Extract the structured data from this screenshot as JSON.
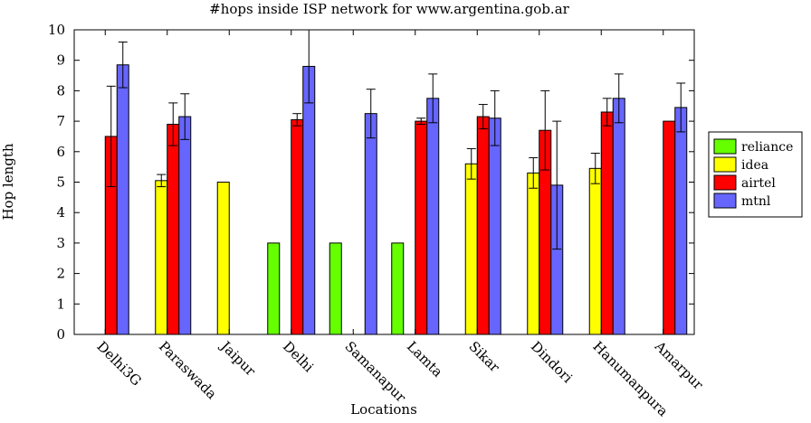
{
  "chart_data": {
    "type": "bar",
    "title": "#hops inside ISP network for www.argentina.gob.ar",
    "xlabel": "Locations",
    "ylabel": "Hop length",
    "ylim": [
      0,
      10
    ],
    "yticks": [
      0,
      1,
      2,
      3,
      4,
      5,
      6,
      7,
      8,
      9,
      10
    ],
    "categories": [
      "Delhi3G",
      "Paraswada",
      "Jaipur",
      "Delhi",
      "Samanapur",
      "Lamta",
      "Sikar",
      "Dindori",
      "Hanumanpura",
      "Amarpur"
    ],
    "legend_position": "right",
    "series": [
      {
        "name": "reliance",
        "color": "#66ff00",
        "values": [
          null,
          null,
          null,
          3,
          3,
          3,
          null,
          null,
          null,
          null
        ],
        "errors": [
          null,
          null,
          null,
          null,
          null,
          null,
          null,
          null,
          null,
          null
        ]
      },
      {
        "name": "idea",
        "color": "#ffff00",
        "values": [
          null,
          5.05,
          5,
          null,
          null,
          null,
          5.6,
          5.3,
          5.45,
          null
        ],
        "errors": [
          null,
          0.2,
          null,
          null,
          null,
          null,
          0.5,
          0.5,
          0.5,
          null
        ]
      },
      {
        "name": "airtel",
        "color": "#ff0000",
        "values": [
          6.5,
          6.9,
          null,
          7.05,
          null,
          7,
          7.15,
          6.7,
          7.3,
          7
        ],
        "errors": [
          1.65,
          0.7,
          null,
          0.2,
          null,
          0.1,
          0.4,
          1.3,
          0.45,
          null
        ]
      },
      {
        "name": "mtnl",
        "color": "#6666ff",
        "values": [
          8.85,
          7.15,
          null,
          8.8,
          7.25,
          7.75,
          7.1,
          4.9,
          7.75,
          7.45
        ],
        "errors": [
          0.75,
          0.75,
          null,
          1.2,
          0.8,
          0.8,
          0.9,
          2.1,
          0.8,
          0.8
        ]
      }
    ]
  }
}
